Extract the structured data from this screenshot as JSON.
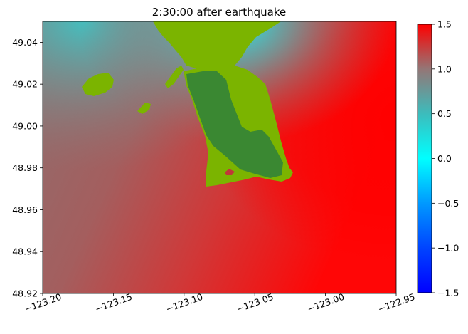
{
  "chart_data": {
    "type": "heatmap",
    "title": "2:30:00 after earthquake",
    "xlabel": "",
    "ylabel": "",
    "xlim": [
      -123.2,
      -122.95
    ],
    "ylim": [
      48.92,
      49.05
    ],
    "x_ticks": [
      -123.2,
      -123.15,
      -123.1,
      -123.05,
      -123.0,
      -122.95
    ],
    "x_tick_labels": [
      "−123.20",
      "−123.15",
      "−123.10",
      "−123.05",
      "−123.00",
      "−122.95"
    ],
    "y_ticks": [
      48.92,
      48.94,
      48.96,
      48.98,
      49.0,
      49.02,
      49.04
    ],
    "y_tick_labels": [
      "48.92",
      "48.94",
      "48.96",
      "48.98",
      "49.00",
      "49.02",
      "49.04"
    ],
    "colorbar": {
      "range": [
        -1.5,
        1.5
      ],
      "ticks": [
        -1.5,
        -1.0,
        -0.5,
        0.0,
        0.5,
        1.0,
        1.5
      ],
      "tick_labels": [
        "−1.5",
        "−1.0",
        "−0.5",
        "0.0",
        "0.5",
        "1.0",
        "1.5"
      ],
      "colors": [
        {
          "value": -1.5,
          "color": "#0000ff"
        },
        {
          "value": -1.0,
          "color": "#0044ff"
        },
        {
          "value": -0.5,
          "color": "#0099ff"
        },
        {
          "value": 0.0,
          "color": "#00ffff"
        },
        {
          "value": 0.5,
          "color": "#3cbcbc"
        },
        {
          "value": 1.0,
          "color": "#947676"
        },
        {
          "value": 1.5,
          "color": "#ff0000"
        }
      ]
    },
    "land_colors": {
      "low_land": "#7bb400",
      "high_land": "#3a8832"
    },
    "grid": false
  }
}
